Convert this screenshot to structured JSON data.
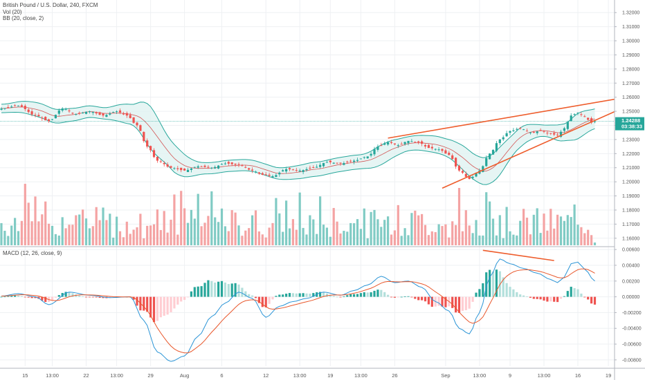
{
  "chart_data": {
    "type": "candlestick",
    "symbol_title": "British Pound / U.S. Dollar, 240, FXCM",
    "indicators": [
      "Vol (20)",
      "BB (20, close, 2)"
    ],
    "macd_title": "MACD (12, 26, close, 9)",
    "current_price_label": "1.24288",
    "countdown_label": "03:38:33",
    "price_axis_ticks": [
      "1.32000",
      "1.31000",
      "1.30000",
      "1.29000",
      "1.28000",
      "1.27000",
      "1.26000",
      "1.25000",
      "1.24000",
      "1.23000",
      "1.22000",
      "1.21000",
      "1.20000",
      "1.19000",
      "1.18000",
      "1.17000",
      "1.16000"
    ],
    "price_ylim": [
      1.155,
      1.325
    ],
    "macd_axis_ticks": [
      "0.00600",
      "0.00400",
      "0.00200",
      "0.00000",
      "-0.00200",
      "-0.00400",
      "-0.00600",
      "-0.00800"
    ],
    "macd_ylim": [
      -0.0088,
      0.0061
    ],
    "x_axis_labels": [
      "15",
      "13:00",
      "22",
      "13:00",
      "29",
      "Aug",
      "6",
      "12",
      "13:00",
      "19",
      "13:00",
      "26",
      "Sep",
      "13:00",
      "9",
      "13:00",
      "16",
      "19"
    ],
    "x_axis_label_bars": [
      7,
      15,
      25,
      34,
      44,
      54,
      65,
      78,
      88,
      97,
      106,
      116,
      131,
      141,
      150,
      160,
      170,
      179
    ],
    "bar_count": 176,
    "price_anchors": [
      [
        0,
        1.252
      ],
      [
        5,
        1.254
      ],
      [
        10,
        1.247
      ],
      [
        14,
        1.243
      ],
      [
        18,
        1.252
      ],
      [
        22,
        1.248
      ],
      [
        26,
        1.25
      ],
      [
        30,
        1.247
      ],
      [
        34,
        1.25
      ],
      [
        37,
        1.247
      ],
      [
        40,
        1.24
      ],
      [
        43,
        1.225
      ],
      [
        46,
        1.215
      ],
      [
        50,
        1.21
      ],
      [
        54,
        1.208
      ],
      [
        58,
        1.211
      ],
      [
        62,
        1.21
      ],
      [
        66,
        1.213
      ],
      [
        70,
        1.212
      ],
      [
        74,
        1.208
      ],
      [
        77,
        1.205
      ],
      [
        80,
        1.204
      ],
      [
        84,
        1.209
      ],
      [
        88,
        1.208
      ],
      [
        92,
        1.21
      ],
      [
        96,
        1.214
      ],
      [
        100,
        1.213
      ],
      [
        104,
        1.215
      ],
      [
        108,
        1.218
      ],
      [
        111,
        1.225
      ],
      [
        114,
        1.228
      ],
      [
        117,
        1.226
      ],
      [
        120,
        1.229
      ],
      [
        123,
        1.228
      ],
      [
        126,
        1.224
      ],
      [
        129,
        1.223
      ],
      [
        132,
        1.219
      ],
      [
        135,
        1.208
      ],
      [
        138,
        1.202
      ],
      [
        141,
        1.208
      ],
      [
        144,
        1.22
      ],
      [
        147,
        1.23
      ],
      [
        150,
        1.236
      ],
      [
        153,
        1.238
      ],
      [
        156,
        1.235
      ],
      [
        159,
        1.236
      ],
      [
        162,
        1.234
      ],
      [
        164,
        1.233
      ],
      [
        166,
        1.238
      ],
      [
        168,
        1.247
      ],
      [
        170,
        1.249
      ],
      [
        172,
        1.246
      ],
      [
        174,
        1.242
      ],
      [
        175,
        1.2429
      ]
    ],
    "bb_width_anchors": [
      [
        0,
        0.003
      ],
      [
        12,
        0.005
      ],
      [
        30,
        0.004
      ],
      [
        38,
        0.007
      ],
      [
        44,
        0.015
      ],
      [
        50,
        0.01
      ],
      [
        60,
        0.004
      ],
      [
        80,
        0.004
      ],
      [
        92,
        0.005
      ],
      [
        106,
        0.005
      ],
      [
        112,
        0.007
      ],
      [
        120,
        0.005
      ],
      [
        130,
        0.006
      ],
      [
        138,
        0.009
      ],
      [
        146,
        0.01
      ],
      [
        152,
        0.007
      ],
      [
        160,
        0.004
      ],
      [
        166,
        0.006
      ],
      [
        170,
        0.009
      ],
      [
        175,
        0.007
      ]
    ],
    "macd_anchors": [
      [
        0,
        0.0001
      ],
      [
        5,
        0.0004
      ],
      [
        10,
        0.0
      ],
      [
        14,
        -0.001
      ],
      [
        20,
        0.0006
      ],
      [
        26,
        0.0002
      ],
      [
        32,
        -0.0001
      ],
      [
        38,
        0.0
      ],
      [
        42,
        -0.003
      ],
      [
        46,
        -0.007
      ],
      [
        50,
        -0.0082
      ],
      [
        54,
        -0.0075
      ],
      [
        58,
        -0.005
      ],
      [
        62,
        -0.0025
      ],
      [
        66,
        -0.0008
      ],
      [
        70,
        0.0006
      ],
      [
        74,
        -0.0002
      ],
      [
        78,
        -0.0026
      ],
      [
        82,
        -0.0012
      ],
      [
        86,
        -0.0006
      ],
      [
        90,
        -0.0002
      ],
      [
        95,
        0.0006
      ],
      [
        100,
        0.0002
      ],
      [
        104,
        0.0008
      ],
      [
        108,
        0.0015
      ],
      [
        112,
        0.0026
      ],
      [
        116,
        0.0018
      ],
      [
        120,
        0.002
      ],
      [
        124,
        0.0012
      ],
      [
        128,
        -0.0006
      ],
      [
        132,
        -0.0018
      ],
      [
        135,
        -0.004
      ],
      [
        138,
        -0.0047
      ],
      [
        141,
        -0.002
      ],
      [
        144,
        0.0025
      ],
      [
        147,
        0.0048
      ],
      [
        150,
        0.0042
      ],
      [
        154,
        0.0036
      ],
      [
        158,
        0.003
      ],
      [
        162,
        0.0022
      ],
      [
        164,
        0.0018
      ],
      [
        166,
        0.0025
      ],
      [
        168,
        0.0042
      ],
      [
        170,
        0.0044
      ],
      [
        172,
        0.0035
      ],
      [
        175,
        0.002
      ]
    ],
    "trendlines_price": [
      {
        "from": [
          114,
          1.231
        ],
        "to": [
          182,
          1.259
        ]
      },
      {
        "from": [
          130,
          1.1955
        ],
        "to": [
          182,
          1.251
        ]
      }
    ],
    "trendlines_macd": [
      {
        "from": [
          142,
          0.0059
        ],
        "to": [
          163,
          0.0046
        ]
      }
    ]
  },
  "colors": {
    "up": "#26a69a",
    "down": "#ef5350",
    "up_volume": "#80cbc4",
    "down_volume": "#f4a3a3",
    "bb_band": "#26a69a",
    "bb_fill": "#e0f2f1",
    "bb_basis": "#d35454",
    "macd_line": "#2a94d6",
    "signal_line": "#e8562a",
    "trendline": "#ee5c2b",
    "price_line": "#26a69a",
    "grid": "#eef0f3",
    "axis_border": "#b2b5be"
  }
}
